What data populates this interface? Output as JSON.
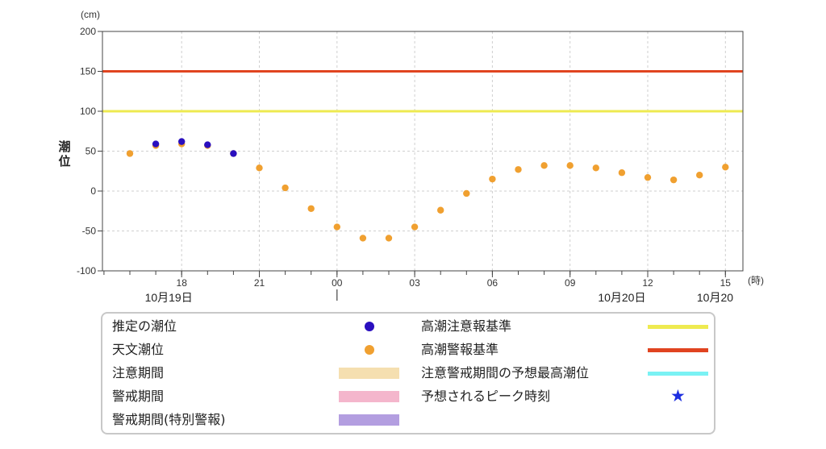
{
  "chart_data": {
    "type": "scatter",
    "y_unit_label": "(cm)",
    "ylabel": "潮位",
    "x_unit_label": "(時)",
    "ylim": [
      -100,
      200
    ],
    "yticks": [
      -100,
      -50,
      0,
      50,
      100,
      150,
      200
    ],
    "xticks": [
      {
        "label": "18",
        "hour": 2
      },
      {
        "label": "21",
        "hour": 5
      },
      {
        "label": "00",
        "hour": 8
      },
      {
        "label": "03",
        "hour": 11
      },
      {
        "label": "06",
        "hour": 14
      },
      {
        "label": "09",
        "hour": 17
      },
      {
        "label": "12",
        "hour": 20
      },
      {
        "label": "15",
        "hour": 23
      }
    ],
    "date_labels": [
      {
        "label": "10月19日",
        "hour": 1.5
      },
      {
        "label": "10月20日",
        "hour": 19
      },
      {
        "label": "10月20",
        "hour": 22.6
      }
    ],
    "day_boundary_hour": 8,
    "grid": true,
    "thresholds": [
      {
        "name": "高潮警報基準",
        "value": 150,
        "color": "#e04420"
      },
      {
        "name": "高潮注意報基準",
        "value": 100,
        "color": "#eeea50"
      }
    ],
    "series": [
      {
        "name": "天文潮位",
        "color": "#f0a030",
        "points": [
          [
            0,
            47
          ],
          [
            1,
            57
          ],
          [
            2,
            59
          ],
          [
            3,
            57
          ],
          [
            4,
            47
          ],
          [
            5,
            29
          ],
          [
            6,
            4
          ],
          [
            7,
            -22
          ],
          [
            8,
            -45
          ],
          [
            9,
            -59
          ],
          [
            10,
            -59
          ],
          [
            11,
            -45
          ],
          [
            12,
            -24
          ],
          [
            13,
            -3
          ],
          [
            14,
            15
          ],
          [
            15,
            27
          ],
          [
            16,
            32
          ],
          [
            17,
            32
          ],
          [
            18,
            29
          ],
          [
            19,
            23
          ],
          [
            20,
            17
          ],
          [
            21,
            14
          ],
          [
            22,
            20
          ],
          [
            23,
            30
          ]
        ]
      },
      {
        "name": "推定の潮位",
        "color": "#2a0fbf",
        "points": [
          [
            1,
            59
          ],
          [
            2,
            62
          ],
          [
            3,
            58
          ],
          [
            4,
            47
          ]
        ]
      }
    ]
  },
  "legend": {
    "items": [
      {
        "label": "推定の潮位",
        "kind": "dot",
        "color": "#2a0fbf"
      },
      {
        "label": "天文潮位",
        "kind": "dot",
        "color": "#f0a030"
      },
      {
        "label": "注意期間",
        "kind": "bar",
        "color": "#f5dfb0"
      },
      {
        "label": "警戒期間",
        "kind": "bar",
        "color": "#f4b6cc"
      },
      {
        "label": "警戒期間(特別警報)",
        "kind": "bar",
        "color": "#b39ee0"
      },
      {
        "label": "高潮注意報基準",
        "kind": "line",
        "color": "#eeea50"
      },
      {
        "label": "高潮警報基準",
        "kind": "line",
        "color": "#e04420"
      },
      {
        "label": "注意警戒期間の予想最高潮位",
        "kind": "line",
        "color": "#7af2f4"
      },
      {
        "label": "予想されるピーク時刻",
        "kind": "star",
        "color": "#1c2ee0"
      }
    ]
  }
}
